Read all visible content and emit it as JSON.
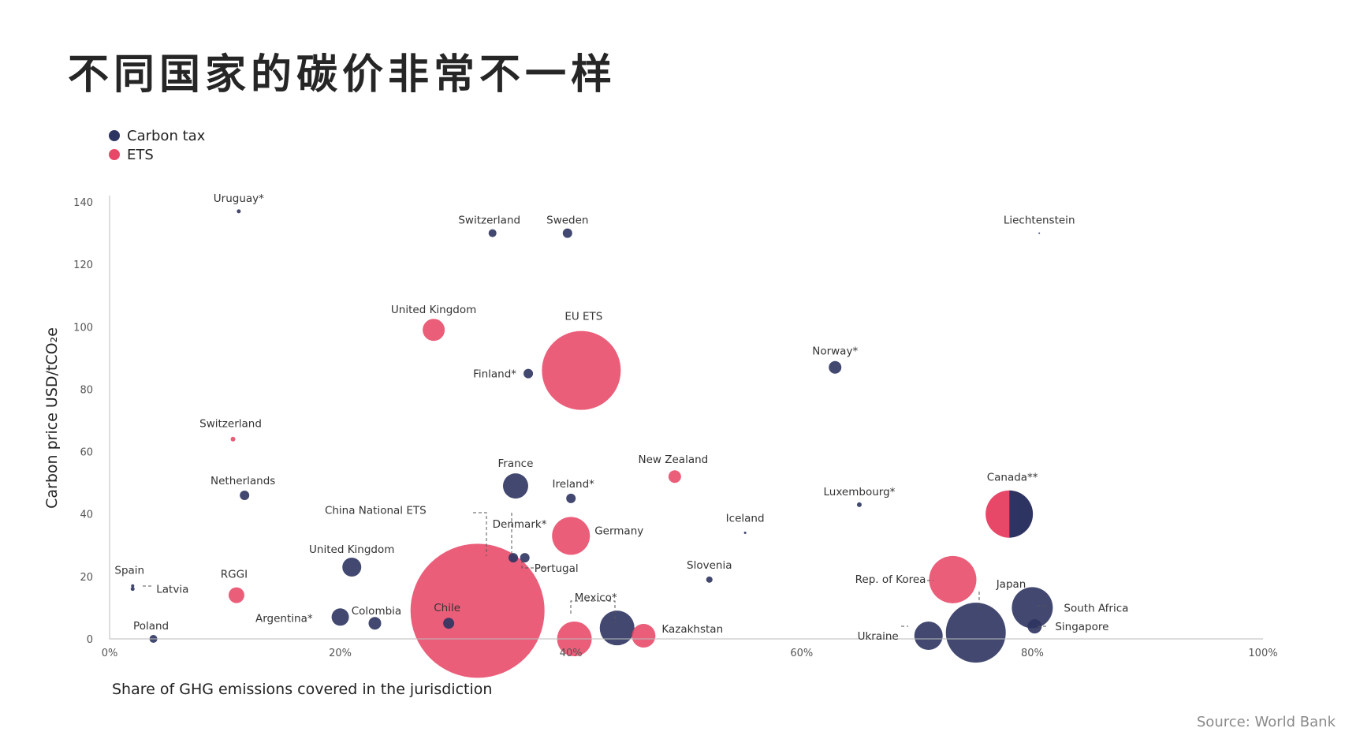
{
  "title": "不同国家的碳价非常不一样",
  "source": "Source: World Bank",
  "legend": [
    {
      "label": "Carbon tax",
      "color": "#2e3461"
    },
    {
      "label": "ETS",
      "color": "#e84868"
    }
  ],
  "chart_data": {
    "type": "scatter",
    "subtype": "bubble",
    "title": "不同国家的碳价非常不一样",
    "xlabel": "Share of GHG emissions covered in the jurisdiction",
    "ylabel": "Carbon price USD/tCO₂e",
    "xlim": [
      0,
      1
    ],
    "ylim": [
      0,
      140
    ],
    "x_ticks": [
      "0%",
      "20%",
      "40%",
      "60%",
      "80%",
      "100%"
    ],
    "y_ticks": [
      "0",
      "20",
      "40",
      "60",
      "80",
      "100",
      "120",
      "140"
    ],
    "grid": false,
    "legend_position": "top-left",
    "series": [
      {
        "name": "Carbon tax",
        "color": "#2e3461",
        "points": [
          {
            "label": "Uruguay*",
            "x": 0.112,
            "y": 137,
            "r": 2.5
          },
          {
            "label": "Switzerland",
            "x": 0.332,
            "y": 130,
            "r": 5
          },
          {
            "label": "Sweden",
            "x": 0.397,
            "y": 130,
            "r": 6
          },
          {
            "label": "Liechtenstein",
            "x": 0.806,
            "y": 130,
            "r": 1
          },
          {
            "label": "Finland*",
            "x": 0.363,
            "y": 85,
            "r": 6
          },
          {
            "label": "Norway*",
            "x": 0.629,
            "y": 87,
            "r": 8
          },
          {
            "label": "Netherlands",
            "x": 0.117,
            "y": 46,
            "r": 6
          },
          {
            "label": "France",
            "x": 0.352,
            "y": 49,
            "r": 16
          },
          {
            "label": "Ireland*",
            "x": 0.4,
            "y": 45,
            "r": 6
          },
          {
            "label": "Luxembourg*",
            "x": 0.65,
            "y": 43,
            "r": 3
          },
          {
            "label": "Iceland",
            "x": 0.551,
            "y": 34,
            "r": 1.5
          },
          {
            "label": "Denmark*",
            "x": 0.35,
            "y": 26,
            "r": 6
          },
          {
            "label": "Portugal",
            "x": 0.36,
            "y": 26,
            "r": 6
          },
          {
            "label": "United Kingdom",
            "x": 0.21,
            "y": 23,
            "r": 12
          },
          {
            "label": "Slovenia",
            "x": 0.52,
            "y": 19,
            "r": 4
          },
          {
            "label": "Spain",
            "x": 0.02,
            "y": 17,
            "r": 2
          },
          {
            "label": "Latvia",
            "x": 0.02,
            "y": 16,
            "r": 2.5
          },
          {
            "label": "Argentina*",
            "x": 0.2,
            "y": 7,
            "r": 11
          },
          {
            "label": "Colombia",
            "x": 0.23,
            "y": 5,
            "r": 8
          },
          {
            "label": "Chile",
            "x": 0.294,
            "y": 5,
            "r": 7
          },
          {
            "label": "Poland",
            "x": 0.038,
            "y": 0,
            "r": 5
          },
          {
            "label": "Mexico*",
            "x": 0.44,
            "y": 3.5,
            "r": 22
          },
          {
            "label": "South Africa",
            "x": 0.8,
            "y": 10,
            "r": 26
          },
          {
            "label": "Japan",
            "x": 0.751,
            "y": 2,
            "r": 38
          },
          {
            "label": "Ukraine",
            "x": 0.71,
            "y": 1,
            "r": 18
          },
          {
            "label": "Singapore",
            "x": 0.802,
            "y": 4,
            "r": 9
          },
          {
            "label": "Canada**",
            "x": 0.78,
            "y": 40,
            "r": 30
          }
        ]
      },
      {
        "name": "ETS",
        "color": "#e84868",
        "points": [
          {
            "label": "United Kingdom",
            "x": 0.281,
            "y": 99,
            "r": 14
          },
          {
            "label": "EU ETS",
            "x": 0.409,
            "y": 86,
            "r": 50
          },
          {
            "label": "Switzerland",
            "x": 0.107,
            "y": 64,
            "r": 3
          },
          {
            "label": "New Zealand",
            "x": 0.49,
            "y": 52,
            "r": 8
          },
          {
            "label": "Germany",
            "x": 0.4,
            "y": 33,
            "r": 24
          },
          {
            "label": "China National ETS",
            "x": 0.319,
            "y": 9,
            "r": 85
          },
          {
            "label": "RGGI",
            "x": 0.11,
            "y": 14,
            "r": 10
          },
          {
            "label": "Rep. of Korea",
            "x": 0.731,
            "y": 19,
            "r": 30
          },
          {
            "label": "Kazakhstan",
            "x": 0.463,
            "y": 1,
            "r": 15
          },
          {
            "label": "Mexico*",
            "x": 0.403,
            "y": 0,
            "r": 22
          },
          {
            "label": "Canada**",
            "x": 0.78,
            "y": 40,
            "r": 30
          }
        ]
      }
    ]
  }
}
